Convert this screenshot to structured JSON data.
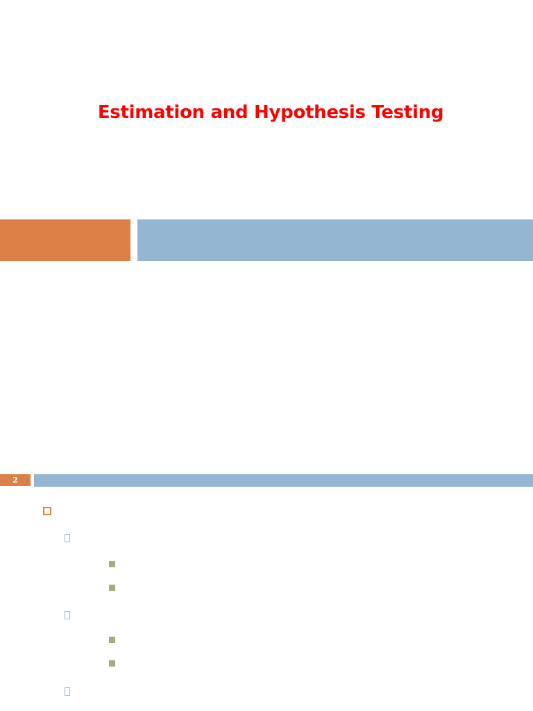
{
  "slide_1": {
    "title": "Estimation and Hypothesis Testing"
  },
  "slide_2": {
    "page_number": "2",
    "bullets": [
      {
        "level": 1,
        "text": ""
      },
      {
        "level": 2,
        "text": ""
      },
      {
        "level": 3,
        "text": ""
      },
      {
        "level": 3,
        "text": ""
      },
      {
        "level": 2,
        "text": ""
      },
      {
        "level": 3,
        "text": ""
      },
      {
        "level": 3,
        "text": ""
      },
      {
        "level": 2,
        "text": ""
      }
    ]
  },
  "colors": {
    "title": "#ff0000",
    "accent_orange": "#dd8047",
    "accent_blue": "#94b6d2",
    "bullet_green": "#a5ab81"
  },
  "icons": {
    "level_1_bullet": "hollow-square",
    "level_2_bullet": "missing-glyph-box",
    "level_3_bullet": "filled-square"
  }
}
